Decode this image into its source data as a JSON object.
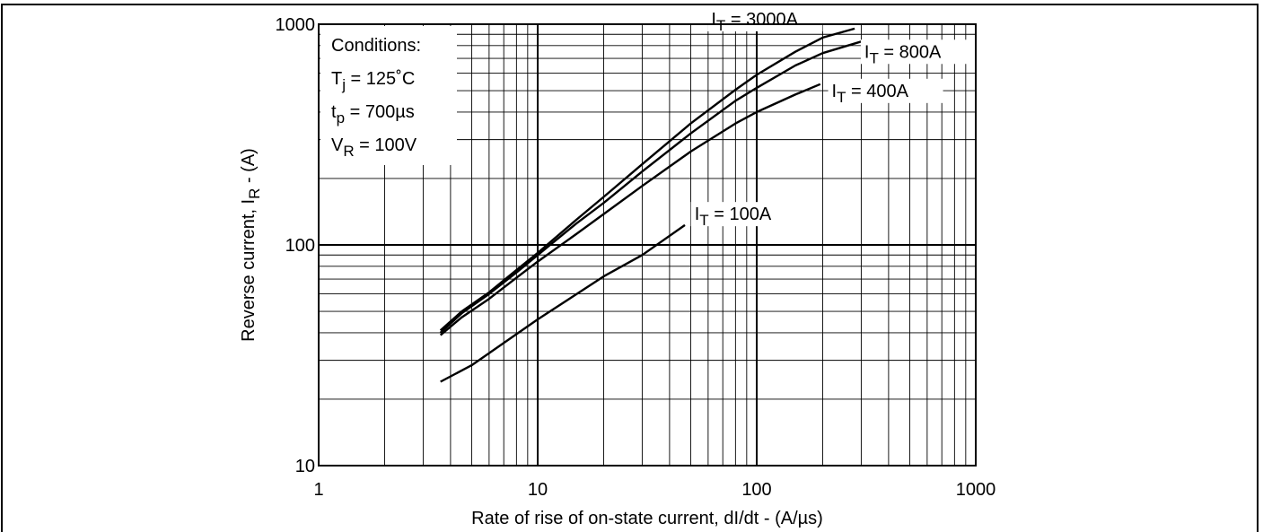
{
  "chart_data": {
    "type": "line",
    "xscale": "log",
    "yscale": "log",
    "xlim": [
      1,
      1000
    ],
    "ylim": [
      10,
      1000
    ],
    "grid": true,
    "xlabel": "Rate of rise of on-state current, dI/dt - (A/µs)",
    "ylabel": {
      "main": "Reverse current, I",
      "sub": "R",
      "tail": " - (A)"
    },
    "x_ticks": [
      "1",
      "10",
      "100",
      "1000"
    ],
    "y_ticks": [
      "10",
      "100",
      "1000"
    ],
    "conditions": {
      "heading": "Conditions:",
      "lines": [
        {
          "main": "T",
          "sub": "j",
          "tail": " = 125˚C"
        },
        {
          "main": "t",
          "sub": "p",
          "tail": " = 700µs"
        },
        {
          "main": "V",
          "sub": "R",
          "tail": " = 100V"
        }
      ]
    },
    "series": [
      {
        "name": {
          "main": "I",
          "sub": "T",
          "tail": " = 3000A"
        },
        "x": [
          3.6,
          4.5,
          6,
          8,
          10,
          15,
          20,
          30,
          50,
          80,
          100,
          150,
          200,
          280
        ],
        "y": [
          41,
          50,
          61,
          77,
          92,
          130,
          165,
          232,
          355,
          505,
          590,
          750,
          870,
          955
        ]
      },
      {
        "name": {
          "main": "I",
          "sub": "T",
          "tail": " = 800A"
        },
        "x": [
          3.6,
          4.5,
          6,
          8,
          10,
          15,
          20,
          30,
          50,
          80,
          100,
          150,
          200,
          300
        ],
        "y": [
          40,
          49,
          60,
          75,
          90,
          125,
          155,
          215,
          320,
          450,
          515,
          650,
          740,
          835
        ]
      },
      {
        "name": {
          "main": "I",
          "sub": "T",
          "tail": " = 400A"
        },
        "x": [
          3.6,
          4.5,
          6,
          8,
          10,
          15,
          20,
          30,
          50,
          80,
          100,
          150,
          195
        ],
        "y": [
          39,
          47,
          57,
          71,
          84,
          112,
          138,
          185,
          265,
          355,
          400,
          480,
          535
        ]
      },
      {
        "name": {
          "main": "I",
          "sub": "T",
          "tail": " = 100A"
        },
        "x": [
          3.6,
          5,
          10,
          20,
          30,
          47
        ],
        "y": [
          24,
          28.5,
          46,
          72,
          90,
          123
        ]
      }
    ]
  }
}
